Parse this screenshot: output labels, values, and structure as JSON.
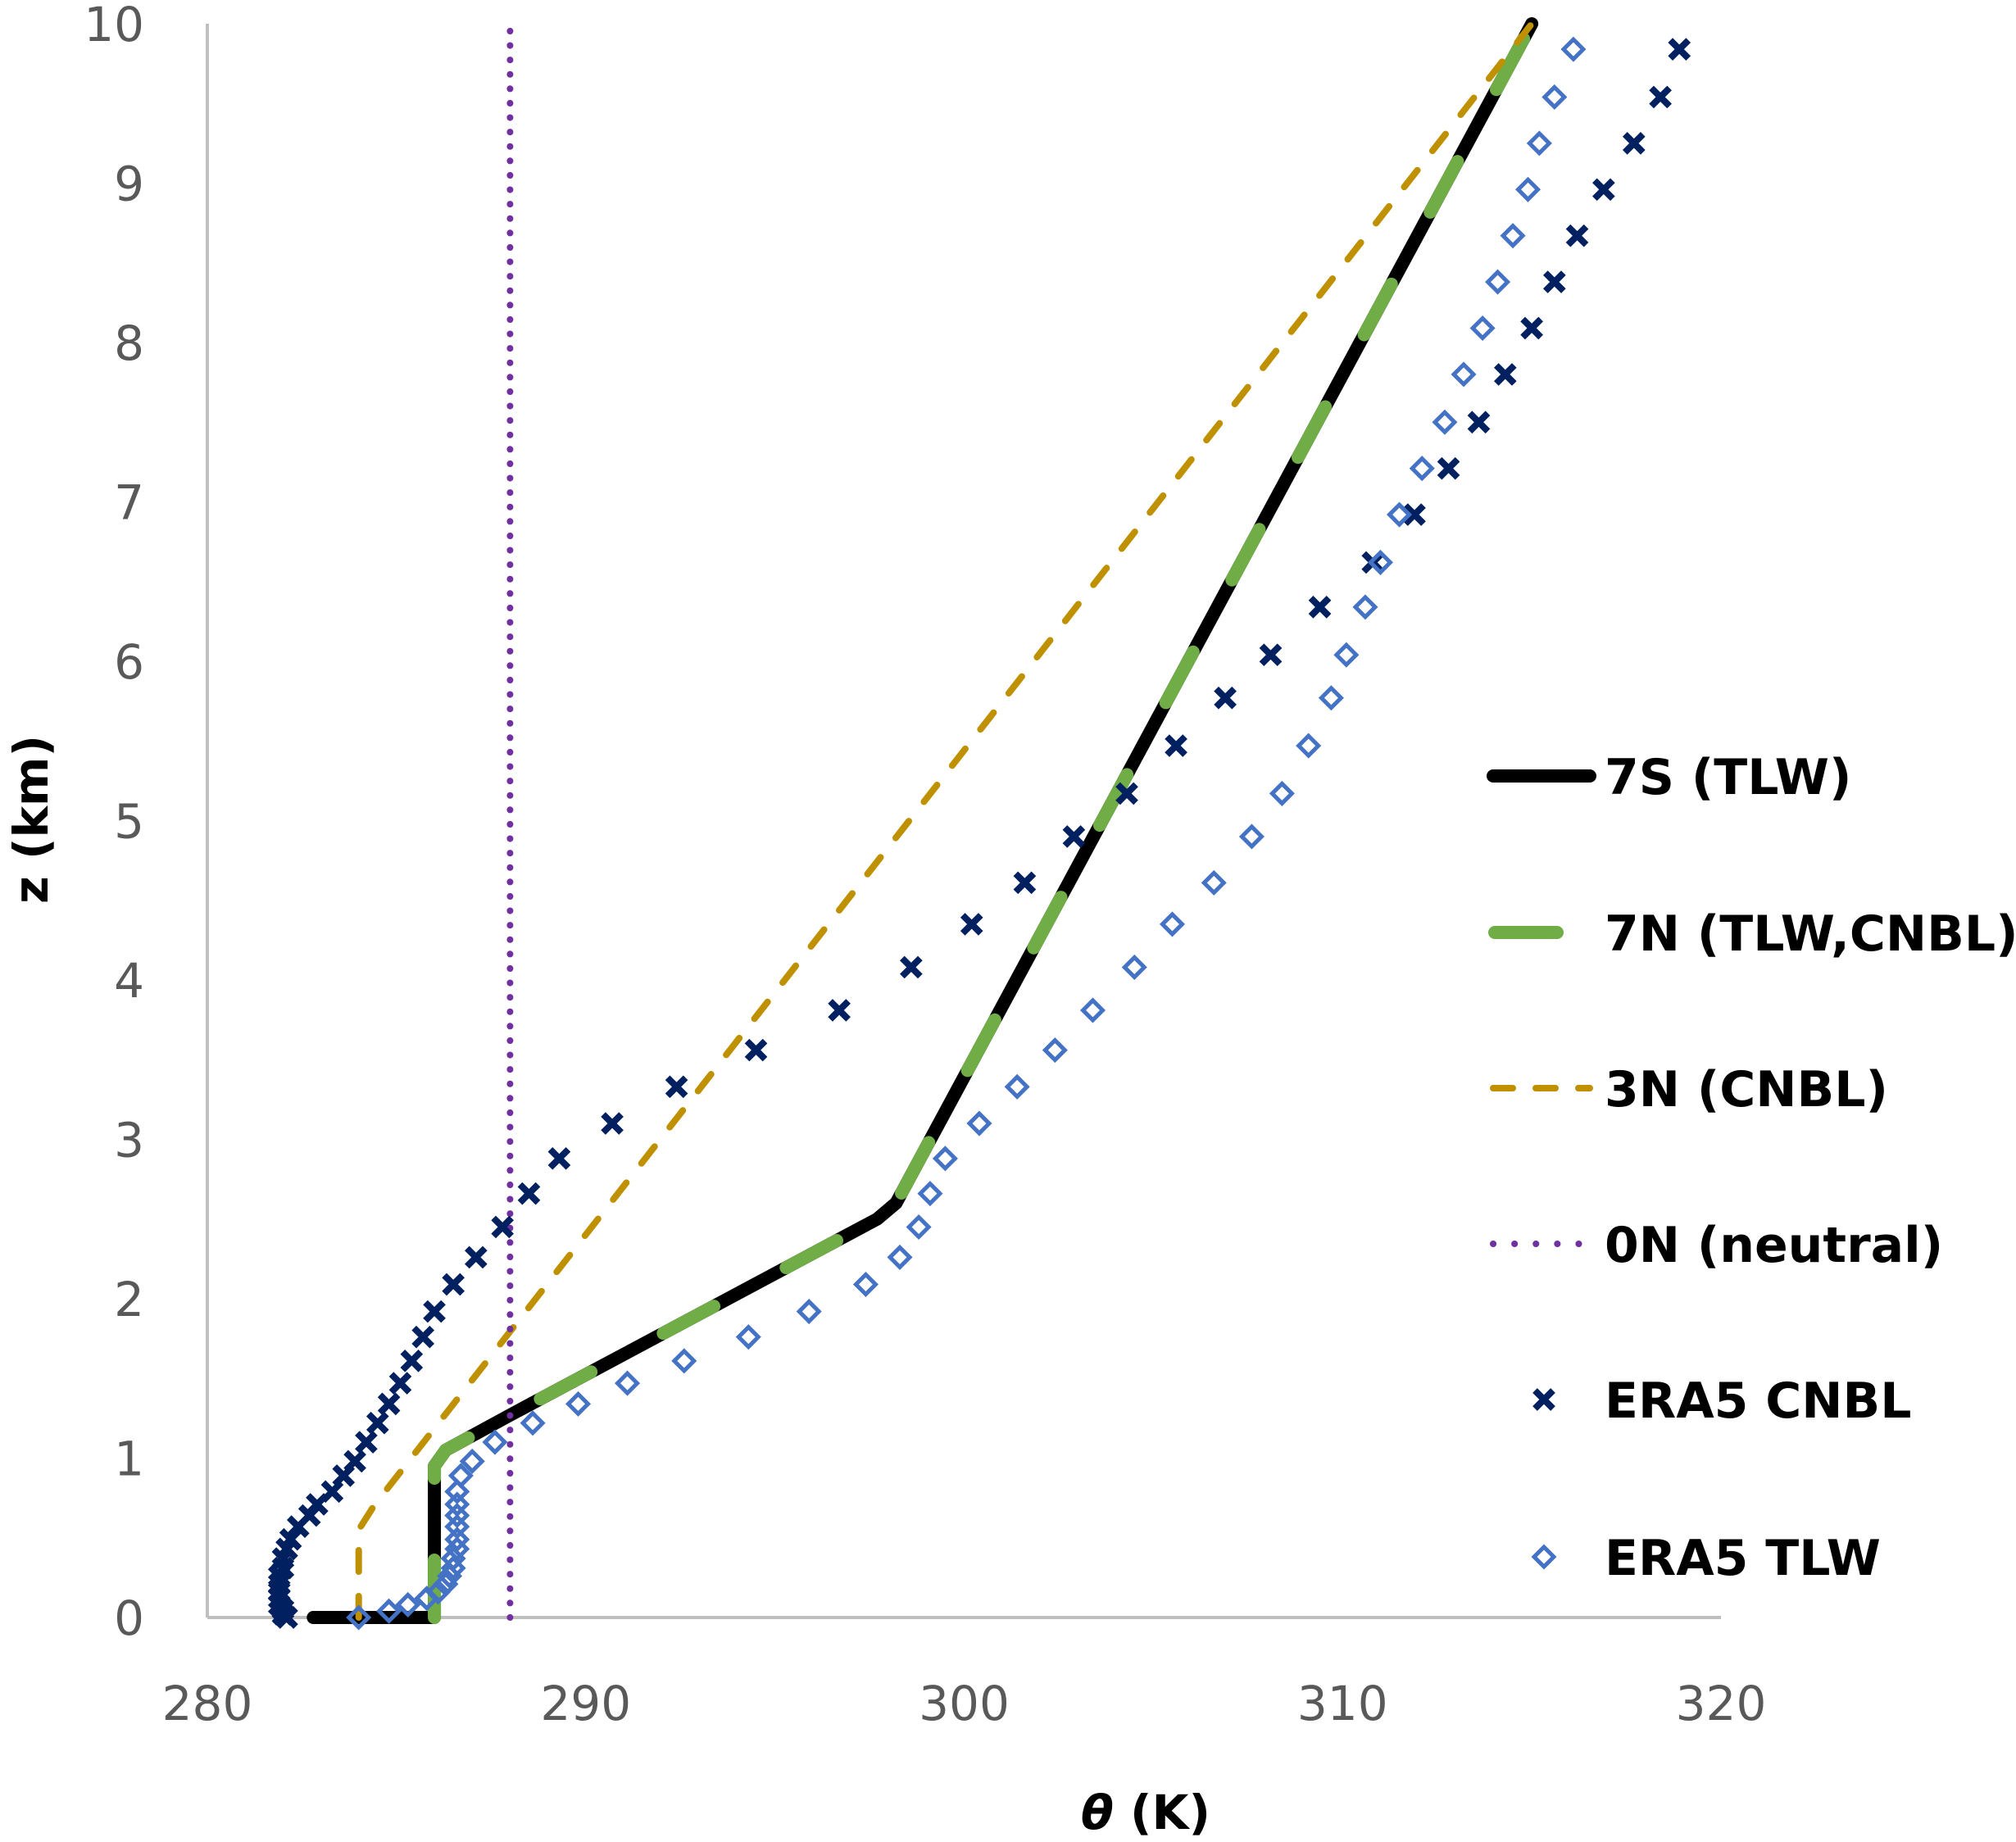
{
  "chart_data": {
    "type": "line",
    "title": "",
    "xlabel": "θ (K)",
    "xlabel_symbol": "θ",
    "xlabel_unit": " (K)",
    "ylabel": "z (km)",
    "xlim": [
      280,
      320
    ],
    "ylim": [
      0,
      10
    ],
    "xticks": [
      280,
      290,
      300,
      310,
      320
    ],
    "yticks": [
      0,
      1,
      2,
      3,
      4,
      5,
      6,
      7,
      8,
      9,
      10
    ],
    "xtick_labels": [
      "280",
      "290",
      "300",
      "310",
      "320"
    ],
    "ytick_labels": [
      "0",
      "1",
      "2",
      "3",
      "4",
      "5",
      "6",
      "7",
      "8",
      "9",
      "10"
    ],
    "grid": false,
    "legend_position": "right",
    "series": [
      {
        "name": "7S (TLW)",
        "kind": "line",
        "style": "solid",
        "color": "#000000",
        "x": [
          282.8,
          286.0,
          286.0,
          286.3,
          288.0,
          297.7,
          298.2,
          315.0
        ],
        "y": [
          0.0,
          0.0,
          0.95,
          1.05,
          1.27,
          2.5,
          2.6,
          10.0
        ]
      },
      {
        "name": "7N (TLW,CNBL)",
        "kind": "line",
        "style": "long-dash",
        "color": "#70AD47",
        "x": [
          286.0,
          286.0,
          286.3,
          288.0,
          297.7,
          298.2,
          315.0
        ],
        "y": [
          0.0,
          0.95,
          1.05,
          1.27,
          2.5,
          2.6,
          10.0
        ]
      },
      {
        "name": "3N (CNBL)",
        "kind": "line",
        "style": "dash",
        "color": "#BF9000",
        "x": [
          284.0,
          284.0,
          284.4,
          315.0
        ],
        "y": [
          0.0,
          0.55,
          0.7,
          10.0
        ]
      },
      {
        "name": "0N (neutral)",
        "kind": "line",
        "style": "dot",
        "color": "#7030A0",
        "x": [
          288.0,
          288.0
        ],
        "y": [
          0.0,
          10.0
        ]
      },
      {
        "name": "ERA5 CNBL",
        "kind": "scatter",
        "marker": "x",
        "color": "#002060",
        "x": [
          318.9,
          318.4,
          317.7,
          316.9,
          316.2,
          315.6,
          315.0,
          314.3,
          313.6,
          312.8,
          311.9,
          310.8,
          309.4,
          308.1,
          306.9,
          305.6,
          304.3,
          302.9,
          301.6,
          300.2,
          298.6,
          296.7,
          294.5,
          292.4,
          290.7,
          289.3,
          288.5,
          287.8,
          287.1,
          286.5,
          286.0,
          285.7,
          285.4,
          285.1,
          284.8,
          284.5,
          284.2,
          283.9,
          283.6,
          283.3,
          282.9,
          282.7,
          282.4,
          282.2,
          282.1,
          282.0,
          282.0,
          281.9,
          281.9,
          281.9,
          281.9,
          281.9,
          282.0,
          282.0,
          282.1
        ],
        "y": [
          9.84,
          9.54,
          9.25,
          8.96,
          8.67,
          8.38,
          8.09,
          7.8,
          7.5,
          7.21,
          6.92,
          6.62,
          6.34,
          6.04,
          5.77,
          5.47,
          5.17,
          4.9,
          4.61,
          4.35,
          4.08,
          3.81,
          3.56,
          3.33,
          3.1,
          2.88,
          2.66,
          2.45,
          2.26,
          2.09,
          1.92,
          1.76,
          1.61,
          1.47,
          1.34,
          1.22,
          1.1,
          0.98,
          0.89,
          0.79,
          0.71,
          0.64,
          0.57,
          0.49,
          0.43,
          0.37,
          0.31,
          0.26,
          0.21,
          0.16,
          0.12,
          0.08,
          0.05,
          0.02,
          0.0
        ]
      },
      {
        "name": "ERA5 TLW",
        "kind": "scatter",
        "marker": "diamond-open",
        "color": "#4472C4",
        "x": [
          316.1,
          315.6,
          315.2,
          314.9,
          314.5,
          314.1,
          313.7,
          313.2,
          312.7,
          312.1,
          311.5,
          311.0,
          310.6,
          310.1,
          309.7,
          309.1,
          308.4,
          307.6,
          306.6,
          305.5,
          304.5,
          303.4,
          302.4,
          301.4,
          300.4,
          299.5,
          299.1,
          298.8,
          298.3,
          297.4,
          295.9,
          294.3,
          292.6,
          291.1,
          289.8,
          288.6,
          287.6,
          287.0,
          286.7,
          286.6,
          286.6,
          286.6,
          286.6,
          286.6,
          286.6,
          286.5,
          286.5,
          286.4,
          286.3,
          286.1,
          285.8,
          285.3,
          284.8,
          284.0
        ],
        "y": [
          9.84,
          9.54,
          9.25,
          8.96,
          8.67,
          8.38,
          8.09,
          7.8,
          7.5,
          7.21,
          6.92,
          6.62,
          6.34,
          6.04,
          5.77,
          5.47,
          5.17,
          4.9,
          4.61,
          4.35,
          4.08,
          3.81,
          3.56,
          3.33,
          3.1,
          2.88,
          2.66,
          2.45,
          2.26,
          2.09,
          1.92,
          1.76,
          1.61,
          1.47,
          1.34,
          1.22,
          1.1,
          0.98,
          0.89,
          0.79,
          0.71,
          0.64,
          0.57,
          0.49,
          0.43,
          0.37,
          0.31,
          0.26,
          0.21,
          0.16,
          0.12,
          0.08,
          0.04,
          0.0
        ]
      }
    ]
  }
}
